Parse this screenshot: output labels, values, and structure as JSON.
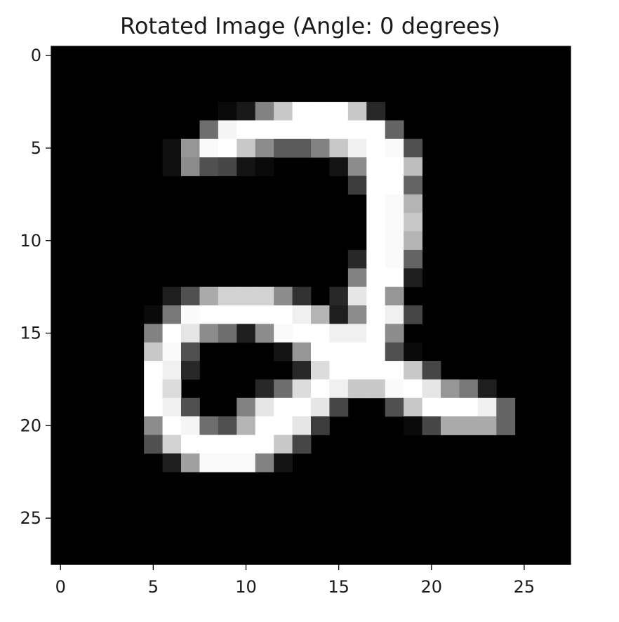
{
  "chart_data": {
    "type": "heatmap",
    "title": "Rotated Image (Angle: 0 degrees)",
    "colormap": "gray",
    "value_range": [
      0,
      255
    ],
    "xlim": [
      -0.5,
      27.5
    ],
    "ylim": [
      27.5,
      -0.5
    ],
    "x_ticks": [
      0,
      5,
      10,
      15,
      20,
      25
    ],
    "y_ticks": [
      0,
      5,
      10,
      15,
      20,
      25
    ],
    "x_tick_labels": [
      "0",
      "5",
      "10",
      "15",
      "20",
      "25"
    ],
    "y_tick_labels": [
      "0",
      "5",
      "10",
      "15",
      "20",
      "25"
    ],
    "grid": false,
    "rows": 28,
    "cols": 28,
    "pixels": [
      [
        3,
        [
          [
            9,
            10
          ],
          [
            10,
            25
          ],
          [
            11,
            130
          ],
          [
            12,
            200
          ],
          [
            13,
            255
          ],
          [
            14,
            255
          ],
          [
            15,
            255
          ],
          [
            16,
            200
          ],
          [
            17,
            40
          ]
        ]
      ],
      [
        4,
        [
          [
            8,
            110
          ],
          [
            9,
            245
          ],
          [
            10,
            255
          ],
          [
            11,
            255
          ],
          [
            12,
            255
          ],
          [
            13,
            255
          ],
          [
            14,
            255
          ],
          [
            15,
            255
          ],
          [
            16,
            255
          ],
          [
            17,
            255
          ],
          [
            18,
            100
          ]
        ]
      ],
      [
        5,
        [
          [
            6,
            15
          ],
          [
            7,
            150
          ],
          [
            8,
            250
          ],
          [
            9,
            255
          ],
          [
            10,
            200
          ],
          [
            11,
            140
          ],
          [
            12,
            90
          ],
          [
            13,
            90
          ],
          [
            14,
            130
          ],
          [
            15,
            200
          ],
          [
            16,
            240
          ],
          [
            17,
            255
          ],
          [
            18,
            250
          ],
          [
            19,
            80
          ]
        ]
      ],
      [
        6,
        [
          [
            6,
            15
          ],
          [
            7,
            140
          ],
          [
            8,
            80
          ],
          [
            9,
            70
          ],
          [
            10,
            20
          ],
          [
            11,
            10
          ],
          [
            15,
            20
          ],
          [
            16,
            140
          ],
          [
            17,
            255
          ],
          [
            18,
            255
          ],
          [
            19,
            190
          ]
        ]
      ],
      [
        7,
        [
          [
            16,
            60
          ],
          [
            17,
            255
          ],
          [
            18,
            255
          ],
          [
            19,
            100
          ]
        ]
      ],
      [
        8,
        [
          [
            17,
            255
          ],
          [
            18,
            250
          ],
          [
            19,
            180
          ]
        ]
      ],
      [
        9,
        [
          [
            17,
            255
          ],
          [
            18,
            250
          ],
          [
            19,
            200
          ]
        ]
      ],
      [
        10,
        [
          [
            17,
            255
          ],
          [
            18,
            250
          ],
          [
            19,
            180
          ]
        ]
      ],
      [
        11,
        [
          [
            16,
            40
          ],
          [
            17,
            255
          ],
          [
            18,
            250
          ],
          [
            19,
            100
          ]
        ]
      ],
      [
        12,
        [
          [
            16,
            130
          ],
          [
            17,
            255
          ],
          [
            18,
            255
          ],
          [
            19,
            30
          ]
        ]
      ],
      [
        13,
        [
          [
            6,
            30
          ],
          [
            7,
            80
          ],
          [
            8,
            170
          ],
          [
            9,
            210
          ],
          [
            10,
            210
          ],
          [
            11,
            210
          ],
          [
            12,
            140
          ],
          [
            13,
            50
          ],
          [
            15,
            40
          ],
          [
            16,
            230
          ],
          [
            17,
            255
          ],
          [
            18,
            150
          ]
        ]
      ],
      [
        14,
        [
          [
            5,
            10
          ],
          [
            6,
            120
          ],
          [
            7,
            250
          ],
          [
            8,
            255
          ],
          [
            9,
            255
          ],
          [
            10,
            255
          ],
          [
            11,
            255
          ],
          [
            12,
            255
          ],
          [
            13,
            240
          ],
          [
            14,
            180
          ],
          [
            15,
            30
          ],
          [
            16,
            140
          ],
          [
            17,
            255
          ],
          [
            18,
            240
          ],
          [
            19,
            70
          ]
        ]
      ],
      [
        15,
        [
          [
            5,
            130
          ],
          [
            6,
            255
          ],
          [
            7,
            230
          ],
          [
            8,
            140
          ],
          [
            9,
            110
          ],
          [
            10,
            30
          ],
          [
            11,
            140
          ],
          [
            12,
            250
          ],
          [
            13,
            255
          ],
          [
            14,
            255
          ],
          [
            15,
            240
          ],
          [
            16,
            240
          ],
          [
            17,
            255
          ],
          [
            18,
            140
          ]
        ]
      ],
      [
        16,
        [
          [
            5,
            200
          ],
          [
            6,
            250
          ],
          [
            7,
            80
          ],
          [
            12,
            20
          ],
          [
            13,
            150
          ],
          [
            14,
            255
          ],
          [
            15,
            255
          ],
          [
            16,
            255
          ],
          [
            17,
            255
          ],
          [
            18,
            80
          ],
          [
            19,
            10
          ]
        ]
      ],
      [
        17,
        [
          [
            5,
            255
          ],
          [
            6,
            240
          ],
          [
            7,
            40
          ],
          [
            13,
            40
          ],
          [
            14,
            220
          ],
          [
            15,
            255
          ],
          [
            16,
            255
          ],
          [
            17,
            255
          ],
          [
            18,
            255
          ],
          [
            19,
            200
          ],
          [
            20,
            70
          ]
        ]
      ],
      [
        18,
        [
          [
            5,
            255
          ],
          [
            6,
            220
          ],
          [
            11,
            40
          ],
          [
            12,
            110
          ],
          [
            13,
            220
          ],
          [
            14,
            255
          ],
          [
            15,
            240
          ],
          [
            16,
            200
          ],
          [
            17,
            200
          ],
          [
            18,
            250
          ],
          [
            19,
            255
          ],
          [
            20,
            230
          ],
          [
            21,
            150
          ],
          [
            22,
            120
          ],
          [
            23,
            30
          ]
        ]
      ],
      [
        19,
        [
          [
            5,
            255
          ],
          [
            6,
            240
          ],
          [
            7,
            80
          ],
          [
            10,
            130
          ],
          [
            11,
            230
          ],
          [
            12,
            255
          ],
          [
            13,
            255
          ],
          [
            14,
            230
          ],
          [
            15,
            70
          ],
          [
            18,
            80
          ],
          [
            19,
            200
          ],
          [
            20,
            255
          ],
          [
            21,
            255
          ],
          [
            22,
            255
          ],
          [
            23,
            240
          ],
          [
            24,
            100
          ]
        ]
      ],
      [
        20,
        [
          [
            5,
            140
          ],
          [
            6,
            255
          ],
          [
            7,
            245
          ],
          [
            8,
            110
          ],
          [
            9,
            80
          ],
          [
            10,
            180
          ],
          [
            11,
            255
          ],
          [
            12,
            255
          ],
          [
            13,
            230
          ],
          [
            14,
            60
          ],
          [
            19,
            10
          ],
          [
            20,
            70
          ],
          [
            21,
            170
          ],
          [
            22,
            170
          ],
          [
            23,
            170
          ],
          [
            24,
            100
          ]
        ]
      ],
      [
        21,
        [
          [
            5,
            80
          ],
          [
            6,
            210
          ],
          [
            7,
            255
          ],
          [
            8,
            255
          ],
          [
            9,
            255
          ],
          [
            10,
            255
          ],
          [
            11,
            255
          ],
          [
            12,
            200
          ],
          [
            13,
            70
          ]
        ]
      ],
      [
        22,
        [
          [
            6,
            30
          ],
          [
            7,
            160
          ],
          [
            8,
            250
          ],
          [
            9,
            250
          ],
          [
            10,
            250
          ],
          [
            11,
            130
          ],
          [
            12,
            20
          ]
        ]
      ]
    ]
  }
}
